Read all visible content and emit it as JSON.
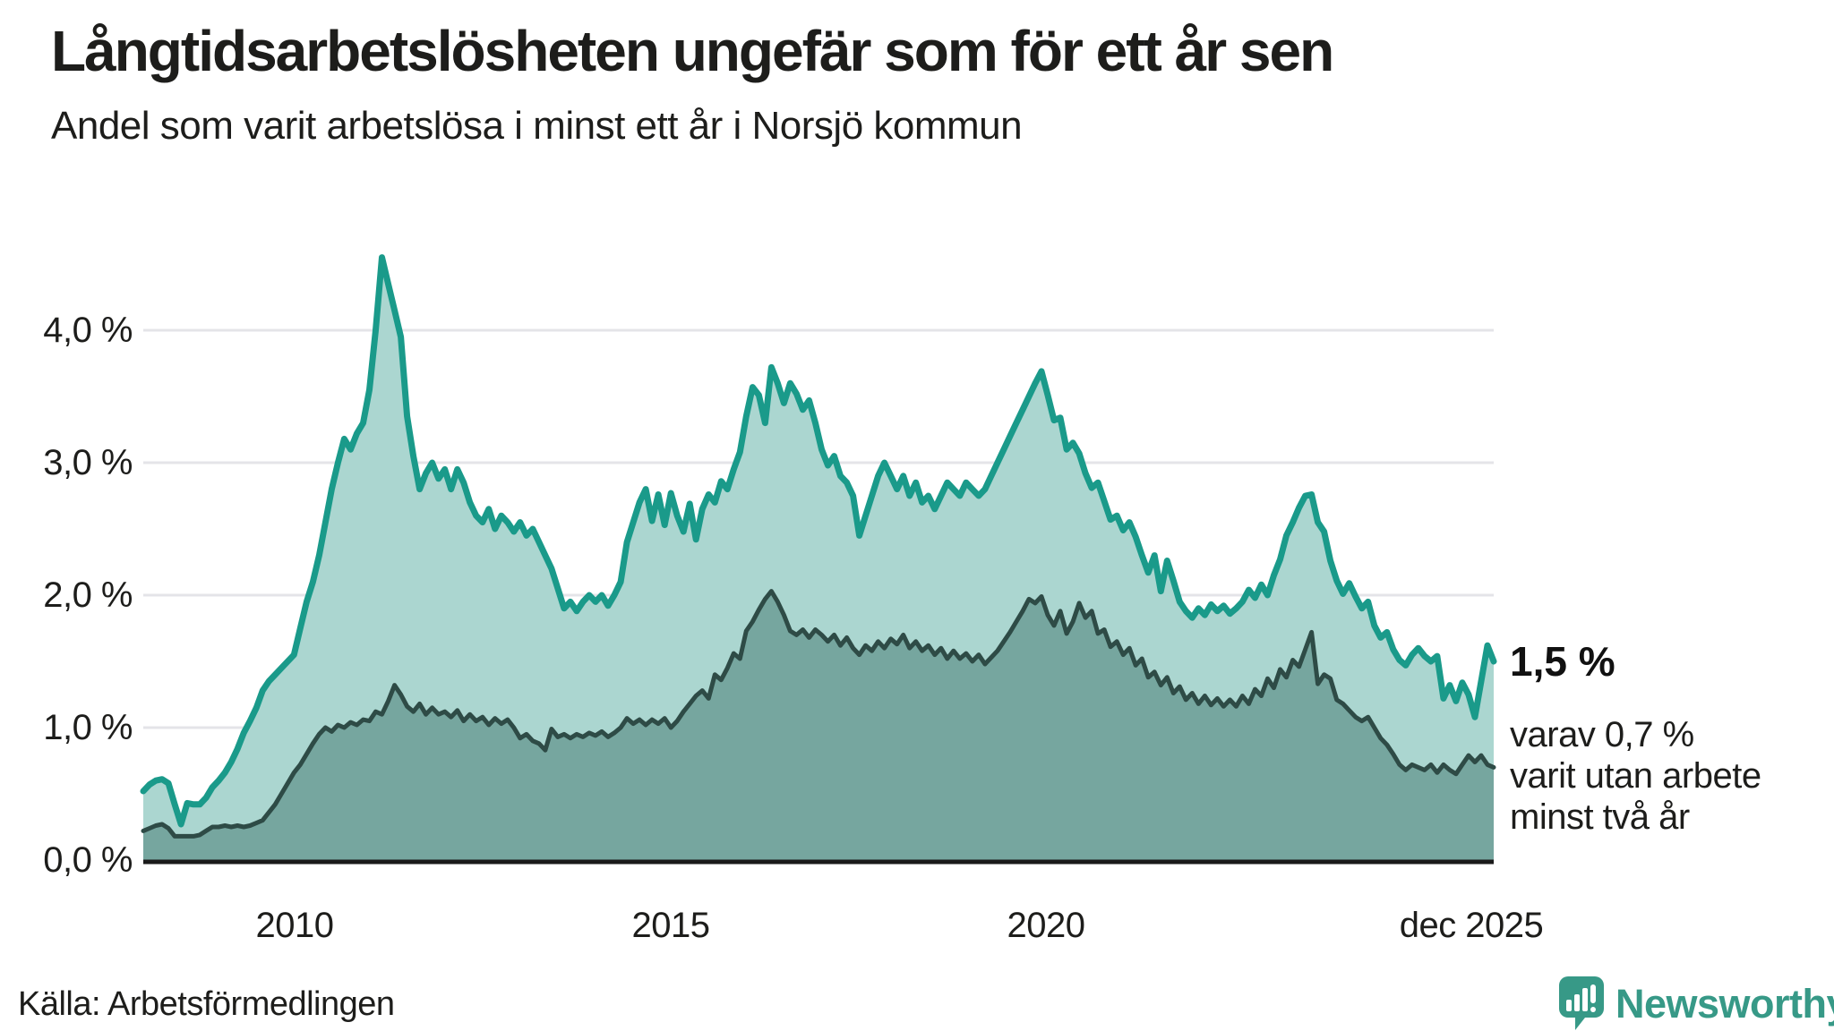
{
  "header": {
    "title": "Långtidsarbetslösheten ungefär som för ett år sen",
    "subtitle": "Andel som varit arbetslösa i minst ett år i Norsjö kommun"
  },
  "footer": {
    "source": "Källa: Arbetsförmedlingen",
    "logo_text": "Newsworthy"
  },
  "colors": {
    "text": "#1d1d1b",
    "gridline": "#e4e4e8",
    "axis_line": "#1a1a1a",
    "series1_line": "#1a9a8a",
    "series1_fill": "#abd6d0",
    "series2_line": "#2e4b46",
    "series2_fill": "#76a69f",
    "logo_teal": "#379987"
  },
  "annotations": {
    "end_value_label": "1,5 %",
    "end_note": "varav 0,7 %\nvarit utan arbete\nminst två år"
  },
  "chart_data": {
    "type": "area",
    "unit": "percent",
    "frequency": "monthly",
    "x_start": "2008-01",
    "x_end": "2025-12",
    "grid": true,
    "ylim": [
      0,
      4.7
    ],
    "y_ticks": [
      {
        "value": 4,
        "label": "4,0 %"
      },
      {
        "value": 3,
        "label": "3,0 %"
      },
      {
        "value": 2,
        "label": "2,0 %"
      },
      {
        "value": 1,
        "label": "1,0 %"
      },
      {
        "value": 0,
        "label": "0,0 %"
      }
    ],
    "x_ticks": [
      {
        "label": "2010"
      },
      {
        "label": "2015"
      },
      {
        "label": "2020"
      },
      {
        "label": "dec 2025"
      }
    ],
    "series": [
      {
        "name": "Arbetslösa minst ett år",
        "end_value": 1.5,
        "values": [
          0.52,
          0.57,
          0.6,
          0.61,
          0.58,
          0.42,
          0.27,
          0.43,
          0.42,
          0.42,
          0.47,
          0.55,
          0.6,
          0.66,
          0.74,
          0.84,
          0.96,
          1.05,
          1.15,
          1.28,
          1.35,
          1.4,
          1.45,
          1.5,
          1.55,
          1.75,
          1.95,
          2.1,
          2.3,
          2.55,
          2.8,
          3.0,
          3.18,
          3.1,
          3.22,
          3.3,
          3.55,
          4.0,
          4.55,
          4.35,
          4.15,
          3.95,
          3.35,
          3.05,
          2.8,
          2.92,
          3.0,
          2.88,
          2.95,
          2.8,
          2.95,
          2.85,
          2.7,
          2.6,
          2.55,
          2.65,
          2.5,
          2.6,
          2.55,
          2.48,
          2.55,
          2.45,
          2.5,
          2.4,
          2.3,
          2.2,
          2.05,
          1.9,
          1.95,
          1.88,
          1.95,
          2.0,
          1.95,
          2.0,
          1.92,
          2.0,
          2.1,
          2.4,
          2.55,
          2.7,
          2.8,
          2.56,
          2.76,
          2.53,
          2.77,
          2.6,
          2.48,
          2.69,
          2.42,
          2.65,
          2.76,
          2.7,
          2.86,
          2.8,
          2.95,
          3.08,
          3.35,
          3.57,
          3.51,
          3.3,
          3.72,
          3.6,
          3.45,
          3.6,
          3.52,
          3.4,
          3.47,
          3.3,
          3.1,
          2.98,
          3.05,
          2.9,
          2.85,
          2.75,
          2.45,
          2.6,
          2.75,
          2.9,
          3.0,
          2.9,
          2.8,
          2.9,
          2.75,
          2.85,
          2.7,
          2.75,
          2.65,
          2.75,
          2.85,
          2.8,
          2.75,
          2.85,
          2.8,
          2.75,
          2.8,
          2.9,
          3.0,
          3.1,
          3.2,
          3.3,
          3.4,
          3.5,
          3.6,
          3.69,
          3.51,
          3.32,
          3.34,
          3.1,
          3.15,
          3.07,
          2.92,
          2.81,
          2.85,
          2.71,
          2.57,
          2.6,
          2.49,
          2.55,
          2.44,
          2.3,
          2.17,
          2.3,
          2.03,
          2.26,
          2.11,
          1.95,
          1.88,
          1.83,
          1.9,
          1.85,
          1.93,
          1.88,
          1.92,
          1.86,
          1.9,
          1.95,
          2.04,
          1.98,
          2.08,
          2.0,
          2.15,
          2.27,
          2.45,
          2.55,
          2.66,
          2.75,
          2.76,
          2.55,
          2.48,
          2.26,
          2.11,
          2.01,
          2.09,
          1.99,
          1.9,
          1.95,
          1.77,
          1.68,
          1.72,
          1.59,
          1.51,
          1.47,
          1.55,
          1.6,
          1.54,
          1.5,
          1.54,
          1.22,
          1.32,
          1.2,
          1.34,
          1.25,
          1.08,
          1.35,
          1.62,
          1.5
        ]
      },
      {
        "name": "varav arbetslösa minst två år",
        "end_value": 0.7,
        "values": [
          0.22,
          0.24,
          0.26,
          0.27,
          0.24,
          0.18,
          0.18,
          0.18,
          0.18,
          0.19,
          0.22,
          0.25,
          0.25,
          0.26,
          0.25,
          0.26,
          0.25,
          0.26,
          0.28,
          0.3,
          0.36,
          0.42,
          0.5,
          0.58,
          0.66,
          0.72,
          0.8,
          0.88,
          0.95,
          1.0,
          0.97,
          1.02,
          1.0,
          1.04,
          1.02,
          1.06,
          1.05,
          1.12,
          1.1,
          1.2,
          1.32,
          1.25,
          1.16,
          1.12,
          1.18,
          1.1,
          1.15,
          1.1,
          1.12,
          1.08,
          1.13,
          1.05,
          1.1,
          1.05,
          1.08,
          1.02,
          1.07,
          1.03,
          1.06,
          1.0,
          0.92,
          0.95,
          0.9,
          0.88,
          0.83,
          0.99,
          0.93,
          0.95,
          0.92,
          0.95,
          0.93,
          0.96,
          0.94,
          0.97,
          0.93,
          0.96,
          1.0,
          1.07,
          1.03,
          1.06,
          1.02,
          1.06,
          1.03,
          1.07,
          1.0,
          1.05,
          1.12,
          1.18,
          1.24,
          1.28,
          1.22,
          1.4,
          1.36,
          1.45,
          1.56,
          1.52,
          1.73,
          1.8,
          1.89,
          1.97,
          2.03,
          1.95,
          1.85,
          1.73,
          1.7,
          1.74,
          1.68,
          1.74,
          1.7,
          1.65,
          1.7,
          1.62,
          1.68,
          1.6,
          1.55,
          1.62,
          1.58,
          1.65,
          1.6,
          1.67,
          1.63,
          1.7,
          1.6,
          1.65,
          1.58,
          1.62,
          1.55,
          1.6,
          1.52,
          1.58,
          1.52,
          1.56,
          1.5,
          1.55,
          1.48,
          1.53,
          1.58,
          1.65,
          1.72,
          1.8,
          1.88,
          1.97,
          1.94,
          1.99,
          1.85,
          1.77,
          1.88,
          1.71,
          1.8,
          1.94,
          1.83,
          1.88,
          1.71,
          1.74,
          1.61,
          1.65,
          1.55,
          1.6,
          1.47,
          1.52,
          1.38,
          1.42,
          1.32,
          1.38,
          1.26,
          1.31,
          1.21,
          1.26,
          1.18,
          1.24,
          1.17,
          1.22,
          1.16,
          1.21,
          1.16,
          1.24,
          1.18,
          1.29,
          1.24,
          1.37,
          1.3,
          1.44,
          1.38,
          1.51,
          1.46,
          1.59,
          1.72,
          1.33,
          1.4,
          1.37,
          1.21,
          1.18,
          1.13,
          1.08,
          1.05,
          1.08,
          1.0,
          0.92,
          0.87,
          0.8,
          0.72,
          0.68,
          0.72,
          0.7,
          0.68,
          0.72,
          0.66,
          0.72,
          0.68,
          0.65,
          0.72,
          0.79,
          0.74,
          0.79,
          0.72,
          0.7
        ]
      }
    ]
  }
}
